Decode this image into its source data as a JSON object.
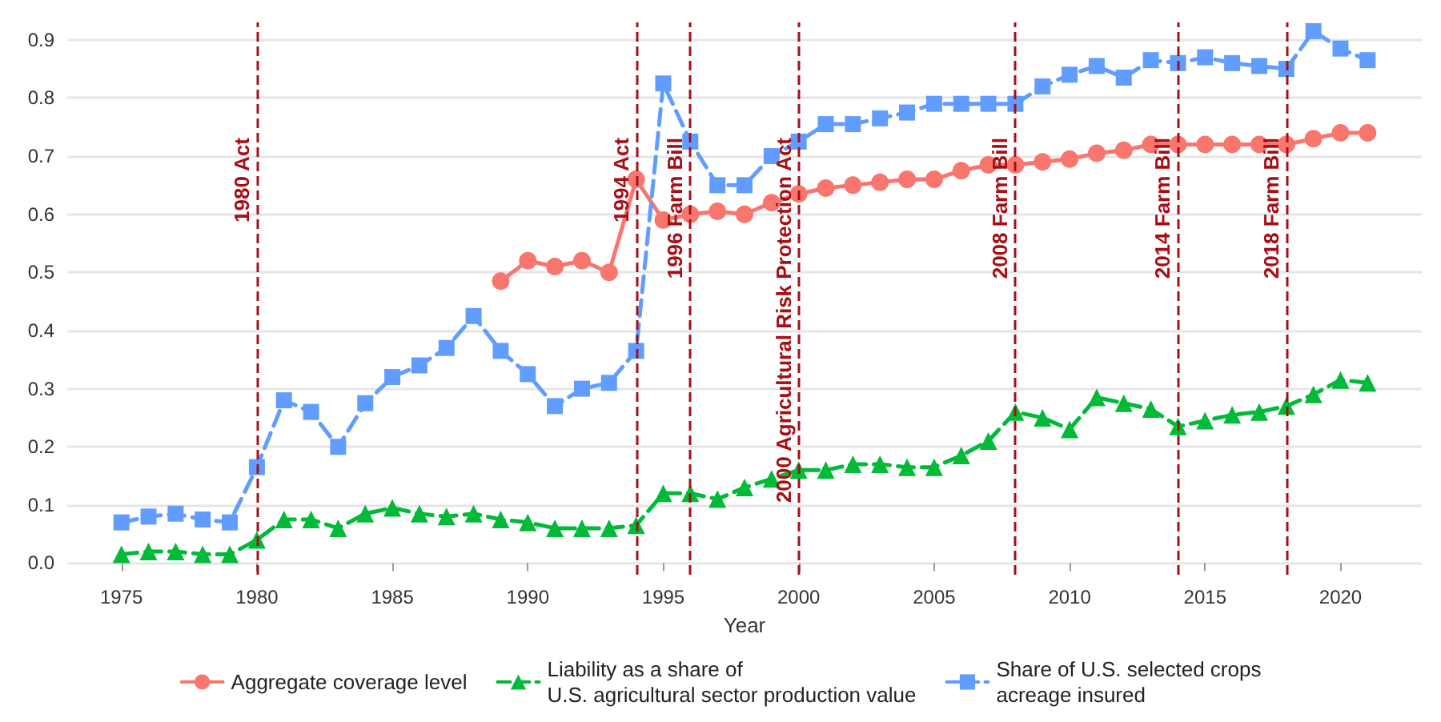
{
  "chart_data": {
    "type": "line",
    "xlabel": "Year",
    "x": [
      1975,
      1976,
      1977,
      1978,
      1979,
      1980,
      1981,
      1982,
      1983,
      1984,
      1985,
      1986,
      1987,
      1988,
      1989,
      1990,
      1991,
      1992,
      1993,
      1994,
      1995,
      1996,
      1997,
      1998,
      1999,
      2000,
      2001,
      2002,
      2003,
      2004,
      2005,
      2006,
      2007,
      2008,
      2009,
      2010,
      2011,
      2012,
      2013,
      2014,
      2015,
      2016,
      2017,
      2018,
      2019,
      2020,
      2021
    ],
    "series": [
      {
        "name": "Aggregate coverage level",
        "color": "#f8766d",
        "marker": "circle",
        "line_style": "solid",
        "x": [
          1989,
          1990,
          1991,
          1992,
          1993,
          1994,
          1995,
          1996,
          1997,
          1998,
          1999,
          2000,
          2001,
          2002,
          2003,
          2004,
          2005,
          2006,
          2007,
          2008,
          2009,
          2010,
          2011,
          2012,
          2013,
          2014,
          2015,
          2016,
          2017,
          2018,
          2019,
          2020,
          2021
        ],
        "values": [
          0.485,
          0.52,
          0.51,
          0.52,
          0.5,
          0.66,
          0.59,
          0.6,
          0.605,
          0.6,
          0.62,
          0.635,
          0.645,
          0.65,
          0.655,
          0.66,
          0.66,
          0.675,
          0.685,
          0.685,
          0.69,
          0.695,
          0.705,
          0.71,
          0.72,
          0.72,
          0.72,
          0.72,
          0.72,
          0.72,
          0.73,
          0.74,
          0.74
        ]
      },
      {
        "name": "Liability as a share of\nU.S. agricultural sector production value",
        "color": "#00ba38",
        "marker": "triangle",
        "line_style": "dashed",
        "values": [
          0.015,
          0.02,
          0.02,
          0.015,
          0.015,
          0.04,
          0.075,
          0.075,
          0.06,
          0.085,
          0.095,
          0.085,
          0.08,
          0.085,
          0.075,
          0.07,
          0.06,
          0.06,
          0.06,
          0.065,
          0.12,
          0.12,
          0.11,
          0.13,
          0.145,
          0.16,
          0.16,
          0.17,
          0.17,
          0.165,
          0.165,
          0.185,
          0.21,
          0.26,
          0.25,
          0.23,
          0.285,
          0.275,
          0.265,
          0.235,
          0.245,
          0.255,
          0.26,
          0.27,
          0.29,
          0.315,
          0.31
        ]
      },
      {
        "name": "Share of U.S. selected crops\nacreage insured",
        "color": "#619cff",
        "marker": "square",
        "line_style": "dashed",
        "values": [
          0.07,
          0.08,
          0.085,
          0.075,
          0.07,
          0.165,
          0.28,
          0.26,
          0.2,
          0.275,
          0.32,
          0.34,
          0.37,
          0.425,
          0.365,
          0.325,
          0.27,
          0.3,
          0.31,
          0.365,
          0.825,
          0.725,
          0.65,
          0.65,
          0.7,
          0.725,
          0.755,
          0.755,
          0.765,
          0.775,
          0.79,
          0.79,
          0.79,
          0.79,
          0.82,
          0.84,
          0.855,
          0.835,
          0.865,
          0.86,
          0.87,
          0.86,
          0.855,
          0.85,
          0.915,
          0.885,
          0.865
        ]
      }
    ],
    "ref_lines": [
      {
        "axis": "x",
        "value": 1980,
        "label": "1980 Act",
        "color": "#a50f15",
        "line_style": "dashed"
      },
      {
        "axis": "x",
        "value": 1994,
        "label": "1994 Act",
        "color": "#a50f15",
        "line_style": "dashed"
      },
      {
        "axis": "x",
        "value": 1996,
        "label": "1996 Farm Bill",
        "color": "#a50f15",
        "line_style": "dashed"
      },
      {
        "axis": "x",
        "value": 2000,
        "label": "2000 Agricultural Risk Protection Act",
        "color": "#a50f15",
        "line_style": "dashed"
      },
      {
        "axis": "x",
        "value": 2008,
        "label": "2008 Farm Bill",
        "color": "#a50f15",
        "line_style": "dashed"
      },
      {
        "axis": "x",
        "value": 2014,
        "label": "2014 Farm Bill",
        "color": "#a50f15",
        "line_style": "dashed"
      },
      {
        "axis": "x",
        "value": 2018,
        "label": "2018 Farm Bill",
        "color": "#a50f15",
        "line_style": "dashed"
      }
    ],
    "xlim": [
      1973,
      2023
    ],
    "xticks": [
      1975,
      1980,
      1985,
      1990,
      1995,
      2000,
      2005,
      2010,
      2015,
      2020
    ],
    "ylim": [
      -0.02,
      0.93
    ],
    "yticks": [
      {
        "value": 0,
        "label": "0.0"
      },
      {
        "value": 0.1,
        "label": "0.1"
      },
      {
        "value": 0.2,
        "label": "0.2"
      },
      {
        "value": 0.3,
        "label": "0.3"
      },
      {
        "value": 0.4,
        "label": "0.4"
      },
      {
        "value": 0.5,
        "label": "0.5"
      },
      {
        "value": 0.6,
        "label": "0.6"
      },
      {
        "value": 0.7,
        "label": "0.7"
      },
      {
        "value": 0.8,
        "label": "0.8"
      },
      {
        "value": 0.9,
        "label": "0.9"
      }
    ],
    "grid": "y",
    "legend": "bottom"
  }
}
